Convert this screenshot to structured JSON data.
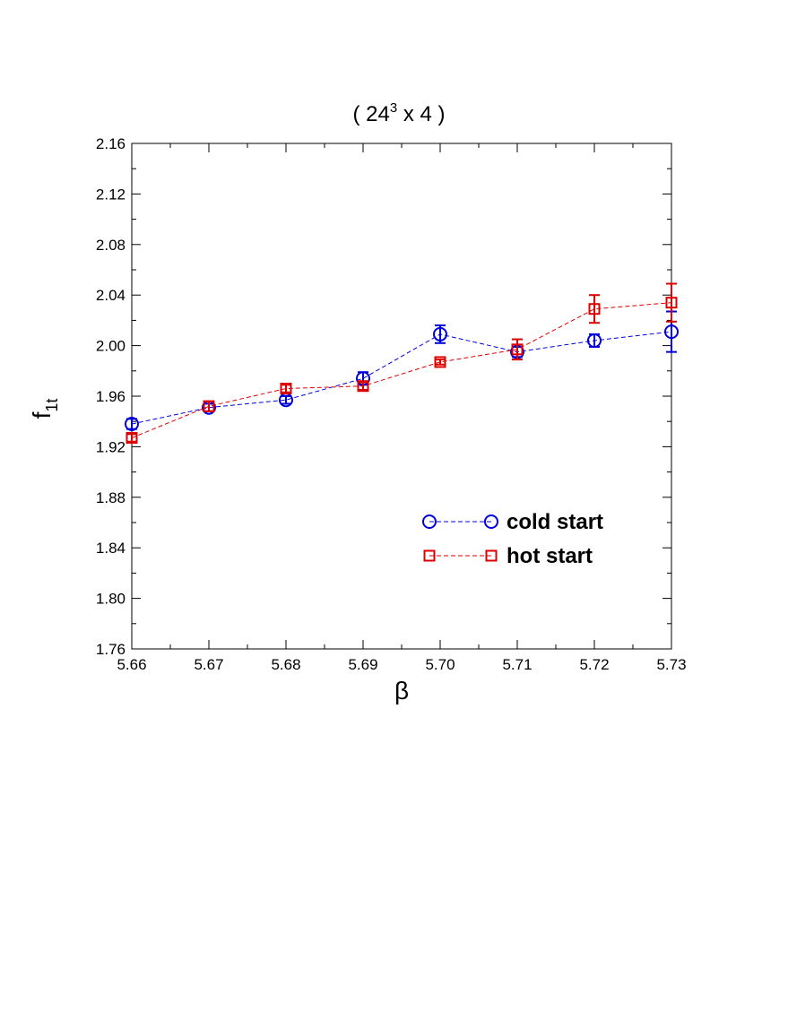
{
  "chart_data": {
    "type": "scatter",
    "title": {
      "prefix": "( 24",
      "superscript": "3",
      "suffix": " x 4 )"
    },
    "xlabel": "β",
    "ylabel": {
      "main": "f",
      "subscript": "1t"
    },
    "xlim": [
      5.66,
      5.73
    ],
    "ylim": [
      1.76,
      2.16
    ],
    "x_ticks": [
      "5.66",
      "5.67",
      "5.68",
      "5.69",
      "5.70",
      "5.71",
      "5.72",
      "5.73"
    ],
    "y_ticks": [
      "1.76",
      "1.80",
      "1.84",
      "1.88",
      "1.92",
      "1.96",
      "2.00",
      "2.04",
      "2.08",
      "2.12",
      "2.16"
    ],
    "grid": false,
    "legend_position": "lower-right",
    "series": [
      {
        "name": "cold start",
        "color": "#0000dd",
        "marker": "circle",
        "line": "dashed",
        "x": [
          5.66,
          5.67,
          5.68,
          5.69,
          5.7,
          5.71,
          5.72,
          5.73
        ],
        "y": [
          1.938,
          1.951,
          1.957,
          1.974,
          2.009,
          1.995,
          2.004,
          2.011
        ],
        "err": [
          0.004,
          0.003,
          0.003,
          0.005,
          0.007,
          0.004,
          0.005,
          0.016
        ]
      },
      {
        "name": "hot start",
        "color": "#dd0000",
        "marker": "square",
        "line": "dashed",
        "x": [
          5.66,
          5.67,
          5.68,
          5.69,
          5.7,
          5.71,
          5.72,
          5.73
        ],
        "y": [
          1.927,
          1.952,
          1.966,
          1.968,
          1.987,
          1.997,
          2.029,
          2.034
        ],
        "err": [
          0.003,
          0.004,
          0.003,
          0.003,
          0.002,
          0.008,
          0.011,
          0.015
        ]
      }
    ]
  }
}
